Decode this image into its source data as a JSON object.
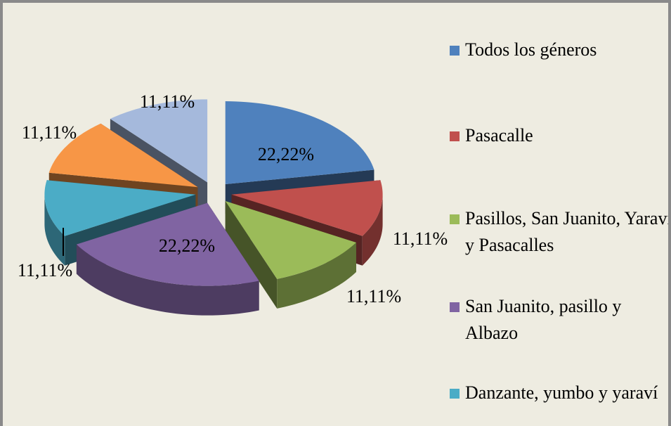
{
  "chart_data": {
    "type": "pie3d",
    "categories": [
      "Todos los géneros",
      "Pasacalle",
      "Pasillos, San Juanito, Yaraví y Pasacalles",
      "San Juanito, pasillo y Albazo",
      "Danzante, yumbo y yaraví",
      null,
      null
    ],
    "values": [
      22.22,
      11.11,
      11.11,
      22.22,
      11.11,
      11.11,
      11.11
    ],
    "value_labels": [
      "22,22%",
      "11,11%",
      "11,11%",
      "22,22%",
      "11,11%",
      "11,11%",
      "11,11%"
    ],
    "colors": [
      "#4f81bd",
      "#c0504d",
      "#9bbb59",
      "#8064a2",
      "#4bacc6",
      "#f79646",
      "#a5b9dc"
    ],
    "legend": "right"
  }
}
